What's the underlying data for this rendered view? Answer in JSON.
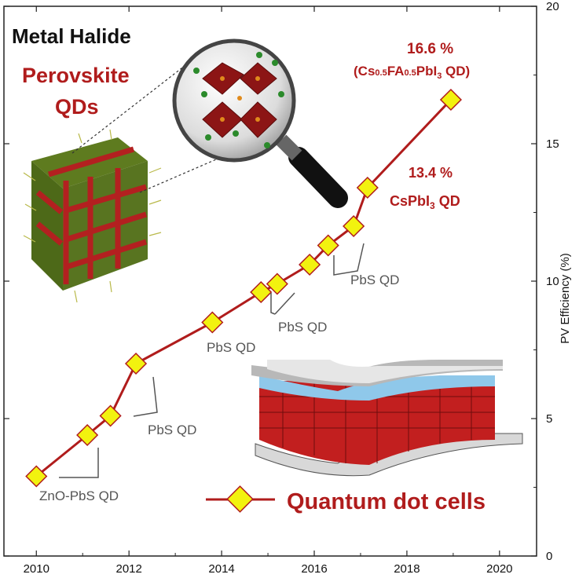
{
  "chart_data": {
    "type": "line",
    "title_line1": "Metal Halide",
    "title_line2": "Perovskite",
    "title_line3": "QDs",
    "xlabel": "",
    "ylabel": "PV Efficiency (%)",
    "xlim": [
      2009.3,
      2020.8
    ],
    "ylim": [
      0,
      20
    ],
    "xticks": [
      2010,
      2012,
      2014,
      2016,
      2018,
      2020
    ],
    "yticks": [
      0,
      5,
      10,
      15,
      20
    ],
    "series": [
      {
        "name": "Quantum dot cells",
        "color": "#b01c1c",
        "marker_color": "#f2f20f",
        "x": [
          2010.0,
          2011.1,
          2011.6,
          2012.15,
          2013.8,
          2014.85,
          2015.2,
          2015.9,
          2016.3,
          2016.85,
          2017.15,
          2018.95
        ],
        "y": [
          2.9,
          4.4,
          5.1,
          7.0,
          8.5,
          9.6,
          9.9,
          10.6,
          11.3,
          12.0,
          13.4,
          16.6
        ]
      }
    ],
    "annotations": {
      "best": "16.6 %",
      "best_material_pre": "(Cs",
      "best_sub1": "0.5",
      "best_material_mid": "FA",
      "best_sub2": "0.5",
      "best_material_post": "PbI",
      "best_sub3": "3",
      "best_material_end": " QD)",
      "second": "13.4 %",
      "second_material_pre": "CsPbI",
      "second_sub": "3",
      "second_material_end": " QD",
      "pbs_label": "PbS QD",
      "znopbs_label": "ZnO-PbS QD"
    },
    "legend_label": "Quantum dot cells",
    "legend_position": "bottom-right",
    "grid": false
  }
}
